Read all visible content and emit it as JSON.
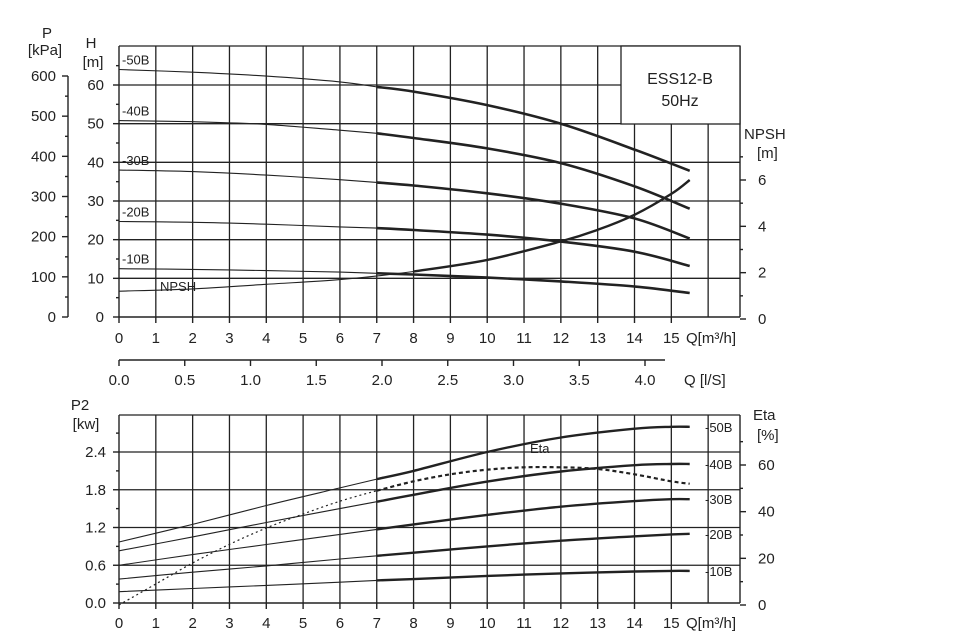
{
  "chart_data": [
    {
      "type": "line",
      "model_label": "ESS12-B",
      "freq_label": "50Hz",
      "x_label": "Q[m³/h]",
      "x_label_ls": "Q [l/S]",
      "x_ticks": [
        "0",
        "1",
        "2",
        "3",
        "4",
        "5",
        "6",
        "7",
        "8",
        "9",
        "10",
        "11",
        "12",
        "13",
        "14",
        "15"
      ],
      "x_ticks_ls": [
        "0.0",
        "0.5",
        "1.0",
        "1.5",
        "2.0",
        "2.5",
        "3.0",
        "3.5",
        "4.0"
      ],
      "xlim": [
        0,
        16
      ],
      "y_label_p": "P",
      "y_label_p_unit": "[kPa]",
      "y_ticks_p": [
        "0",
        "100",
        "200",
        "300",
        "400",
        "500",
        "600"
      ],
      "y_label_h": "H",
      "y_label_h_unit": "[m]",
      "y_ticks_h": [
        "0",
        "10",
        "20",
        "30",
        "40",
        "50",
        "60"
      ],
      "ylim_h": [
        0,
        70
      ],
      "y_label_npsh": "NPSH",
      "y_label_npsh_unit": "[m]",
      "y_ticks_npsh": [
        "0",
        "2",
        "4",
        "6"
      ],
      "series": [
        {
          "name": "-50B",
          "x": [
            0,
            2,
            4,
            6,
            7,
            8,
            10,
            12,
            14,
            15.5
          ],
          "values": [
            64,
            63.3,
            62.3,
            60.8,
            59.5,
            58.3,
            54.8,
            50,
            43.3,
            37.8
          ]
        },
        {
          "name": "-40B",
          "x": [
            0,
            2,
            4,
            6,
            7,
            8,
            10,
            12,
            14,
            15.5
          ],
          "values": [
            50.8,
            50.5,
            49.8,
            48.3,
            47.5,
            46.3,
            43.6,
            39.8,
            33.8,
            28
          ]
        },
        {
          "name": "-30B",
          "x": [
            0,
            2,
            4,
            6,
            7,
            8,
            10,
            12,
            14,
            15.5
          ],
          "values": [
            38,
            37.6,
            36.7,
            35.5,
            34.8,
            34,
            32,
            29.3,
            25.5,
            20.3
          ]
        },
        {
          "name": "-20B",
          "x": [
            0,
            2,
            4,
            6,
            7,
            8,
            10,
            12,
            14,
            15.5
          ],
          "values": [
            24.7,
            24.5,
            24,
            23.3,
            23,
            22.5,
            21.3,
            19.5,
            16.9,
            13.2
          ]
        },
        {
          "name": "-10B",
          "x": [
            0,
            2,
            4,
            6,
            7,
            8,
            10,
            12,
            14,
            15.5
          ],
          "values": [
            12.5,
            12.3,
            12,
            11.6,
            11.3,
            11,
            10.2,
            9.2,
            7.9,
            6.2
          ]
        },
        {
          "name": "NPSH",
          "axis": "npsh",
          "x": [
            0,
            2,
            4,
            6,
            8,
            10,
            12,
            13,
            14,
            15,
            15.5
          ],
          "values": [
            1.2,
            1.3,
            1.5,
            1.7,
            2.05,
            2.55,
            3.35,
            3.85,
            4.5,
            5.4,
            6
          ]
        }
      ]
    },
    {
      "type": "line",
      "x_label": "Q[m³/h]",
      "x_ticks": [
        "0",
        "1",
        "2",
        "3",
        "4",
        "5",
        "6",
        "7",
        "8",
        "9",
        "10",
        "11",
        "12",
        "13",
        "14",
        "15"
      ],
      "xlim": [
        0,
        16
      ],
      "y_label": "P2",
      "y_label_unit": "[kw]",
      "y_ticks": [
        "0.0",
        "0.6",
        "1.2",
        "1.8",
        "2.4"
      ],
      "ylim": [
        0,
        3.0
      ],
      "y_label_eta": "Eta",
      "y_label_eta_unit": "[%]",
      "y_ticks_eta": [
        "0",
        "20",
        "40",
        "60"
      ],
      "ylim_eta": [
        0,
        78
      ],
      "series": [
        {
          "name": "-50B",
          "x": [
            0,
            2,
            4,
            6,
            7,
            8,
            10,
            12,
            14,
            15,
            15.5
          ],
          "values": [
            0.97,
            1.25,
            1.55,
            1.83,
            1.97,
            2.1,
            2.4,
            2.63,
            2.77,
            2.8,
            2.8
          ]
        },
        {
          "name": "-40B",
          "x": [
            0,
            2,
            4,
            6,
            7,
            8,
            10,
            12,
            14,
            15,
            15.5
          ],
          "values": [
            0.83,
            1.05,
            1.28,
            1.5,
            1.61,
            1.72,
            1.93,
            2.09,
            2.19,
            2.21,
            2.21
          ]
        },
        {
          "name": "-30B",
          "x": [
            0,
            2,
            4,
            6,
            7,
            8,
            10,
            12,
            14,
            15,
            15.5
          ],
          "values": [
            0.6,
            0.77,
            0.93,
            1.09,
            1.17,
            1.25,
            1.4,
            1.53,
            1.62,
            1.65,
            1.65
          ]
        },
        {
          "name": "-20B",
          "x": [
            0,
            2,
            4,
            6,
            7,
            8,
            10,
            12,
            14,
            15,
            15.5
          ],
          "values": [
            0.38,
            0.49,
            0.59,
            0.7,
            0.75,
            0.8,
            0.9,
            0.99,
            1.06,
            1.09,
            1.1
          ]
        },
        {
          "name": "-10B",
          "x": [
            0,
            2,
            4,
            6,
            7,
            8,
            10,
            12,
            14,
            15,
            15.5
          ],
          "values": [
            0.18,
            0.23,
            0.28,
            0.33,
            0.36,
            0.38,
            0.43,
            0.47,
            0.5,
            0.51,
            0.51
          ]
        },
        {
          "name": "Eta",
          "axis": "eta",
          "x": [
            0,
            1,
            2,
            3,
            4,
            5,
            6,
            7,
            8,
            9,
            10,
            11,
            12,
            13,
            14,
            15,
            15.5
          ],
          "values": [
            0,
            9,
            18,
            26,
            33,
            39,
            44.5,
            49,
            53,
            56,
            58,
            59,
            59,
            58.3,
            56,
            53,
            52
          ]
        }
      ]
    }
  ]
}
